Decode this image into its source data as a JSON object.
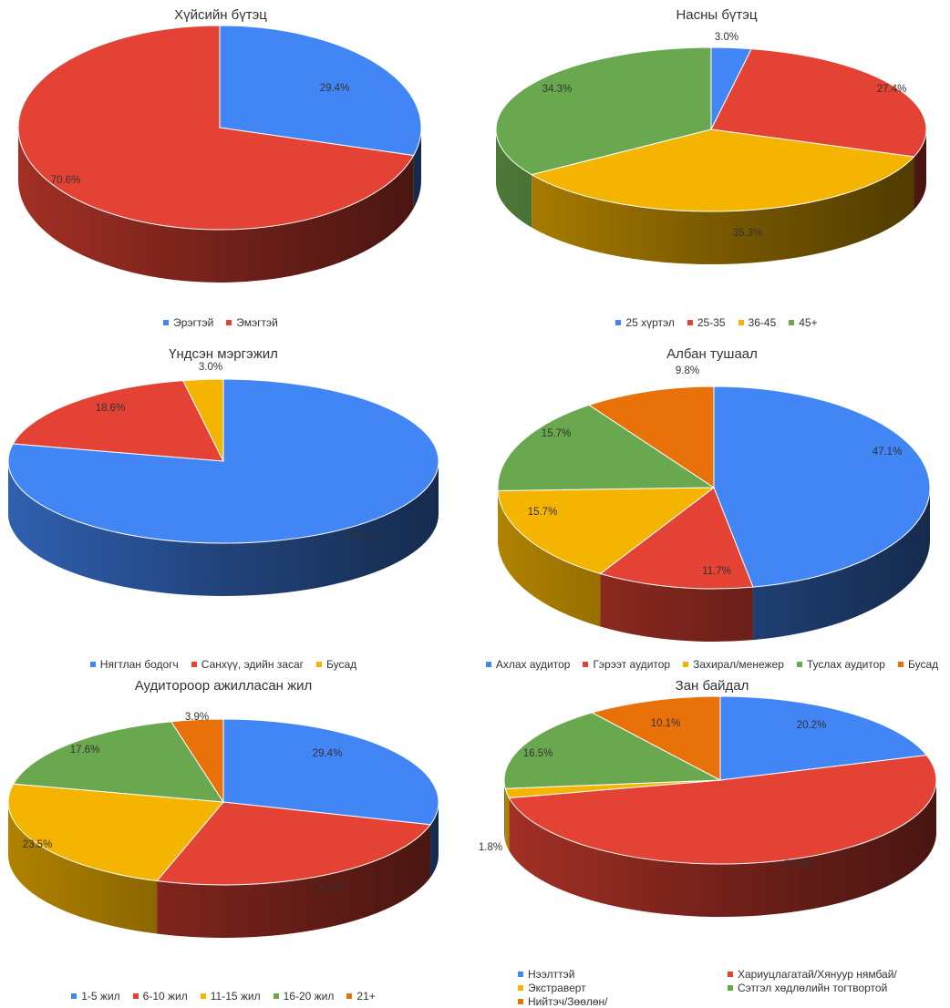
{
  "chart_data": [
    {
      "type": "pie",
      "title": "Хүйсийн бүтэц",
      "categories": [
        "Эрэгтэй",
        "Эмэгтэй"
      ],
      "values": [
        29.4,
        70.6
      ],
      "labels": [
        "29.4%",
        "70.6%"
      ],
      "colors": [
        "#4285f4",
        "#e34234"
      ],
      "legend": "bottom",
      "three_d": true
    },
    {
      "type": "pie",
      "title": "Насны бүтэц",
      "categories": [
        "25 хүртэл",
        "25-35",
        "36-45",
        "45+"
      ],
      "values": [
        3.0,
        27.4,
        35.3,
        34.3
      ],
      "labels": [
        "3.0%",
        "27.4%",
        "35.3%",
        "34.3%"
      ],
      "colors": [
        "#4285f4",
        "#e34234",
        "#f4b400",
        "#6aa84f"
      ],
      "legend": "bottom",
      "three_d": true
    },
    {
      "type": "pie",
      "title": "Үндсэн мэргэжил",
      "categories": [
        "Нягтлан бодогч",
        "Санхүү, эдийн засаг",
        "Бусад"
      ],
      "values": [
        78.4,
        18.6,
        3.0
      ],
      "labels": [
        "78.4%",
        "18.6%",
        "3.0%"
      ],
      "colors": [
        "#4285f4",
        "#e34234",
        "#f4b400"
      ],
      "legend": "bottom",
      "three_d": true
    },
    {
      "type": "pie",
      "title": "Албан тушаал",
      "categories": [
        "Ахлах аудитор",
        "Гэрээт аудитор",
        "Захирал/менежер",
        "Туслах аудитор",
        "Бусад"
      ],
      "values": [
        47.1,
        11.7,
        15.7,
        15.7,
        9.8
      ],
      "labels": [
        "47.1%",
        "11.7%",
        "15.7%",
        "15.7%",
        "9.8%"
      ],
      "colors": [
        "#4285f4",
        "#e34234",
        "#f4b400",
        "#6aa84f",
        "#e8710a"
      ],
      "legend": "bottom",
      "three_d": true
    },
    {
      "type": "pie",
      "title": "Аудитороор ажилласан жил",
      "categories": [
        "1-5 жил",
        "6-10 жил",
        "11-15 жил",
        "16-20 жил",
        "21+"
      ],
      "values": [
        29.4,
        25.6,
        23.5,
        17.6,
        3.9
      ],
      "labels": [
        "29.4%",
        "25.6%",
        "23.5%",
        "17.6%",
        "3.9%"
      ],
      "colors": [
        "#4285f4",
        "#e34234",
        "#f4b400",
        "#6aa84f",
        "#e8710a"
      ],
      "legend": "bottom",
      "three_d": true
    },
    {
      "type": "pie",
      "title": "Зан байдал",
      "categories": [
        "Нээлттэй",
        "Хариуцлагатай/Хянуур нямбай/",
        "Экстраверт",
        "Сэтгэл хөдлөлийн тогтвортой",
        "Нийтэч/Зөөлөн/"
      ],
      "values": [
        20.2,
        51.4,
        1.8,
        16.5,
        10.1
      ],
      "labels": [
        "20.2%",
        "51.4%",
        "1.8%",
        "16.5%",
        "10.1%"
      ],
      "colors": [
        "#4285f4",
        "#e34234",
        "#f4b400",
        "#6aa84f",
        "#e8710a"
      ],
      "legend": "bottom",
      "three_d": true
    }
  ]
}
